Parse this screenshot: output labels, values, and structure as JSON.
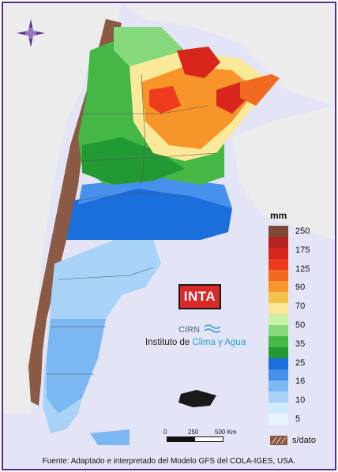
{
  "legend": {
    "unit": "mm",
    "labels": [
      "250",
      "175",
      "125",
      "90",
      "70",
      "50",
      "35",
      "25",
      "16",
      "10",
      "5"
    ],
    "colors": [
      "#7a4a34",
      "#b5221f",
      "#d8261d",
      "#ee3b1e",
      "#f26a22",
      "#f7952b",
      "#f6c04d",
      "#fbe99a",
      "#c9f0a6",
      "#86d97a",
      "#44b744",
      "#229a33",
      "#1b6fdd",
      "#4790ec",
      "#7ab7f3",
      "#a8d3f7",
      "#cfe8fb",
      "#e6f5fd"
    ],
    "nodata_label": "s/dato"
  },
  "scale": {
    "labels": [
      "0",
      "250",
      "500 Km"
    ]
  },
  "logo": {
    "text": "INTA",
    "sub": "CIRN"
  },
  "institute": {
    "prefix": "Instituto de ",
    "highlight": "Clima y Agua"
  },
  "source": "Fuente: Adaptado e interpretado del Modelo GFS del COLA-IGES, USA.",
  "colors": {
    "frame": "#5a2b8f",
    "background": "#e4e4f7",
    "chile": "#ececec",
    "andes_nodata": "#8b5a44",
    "ocean_blue": "#a8d3f7"
  }
}
